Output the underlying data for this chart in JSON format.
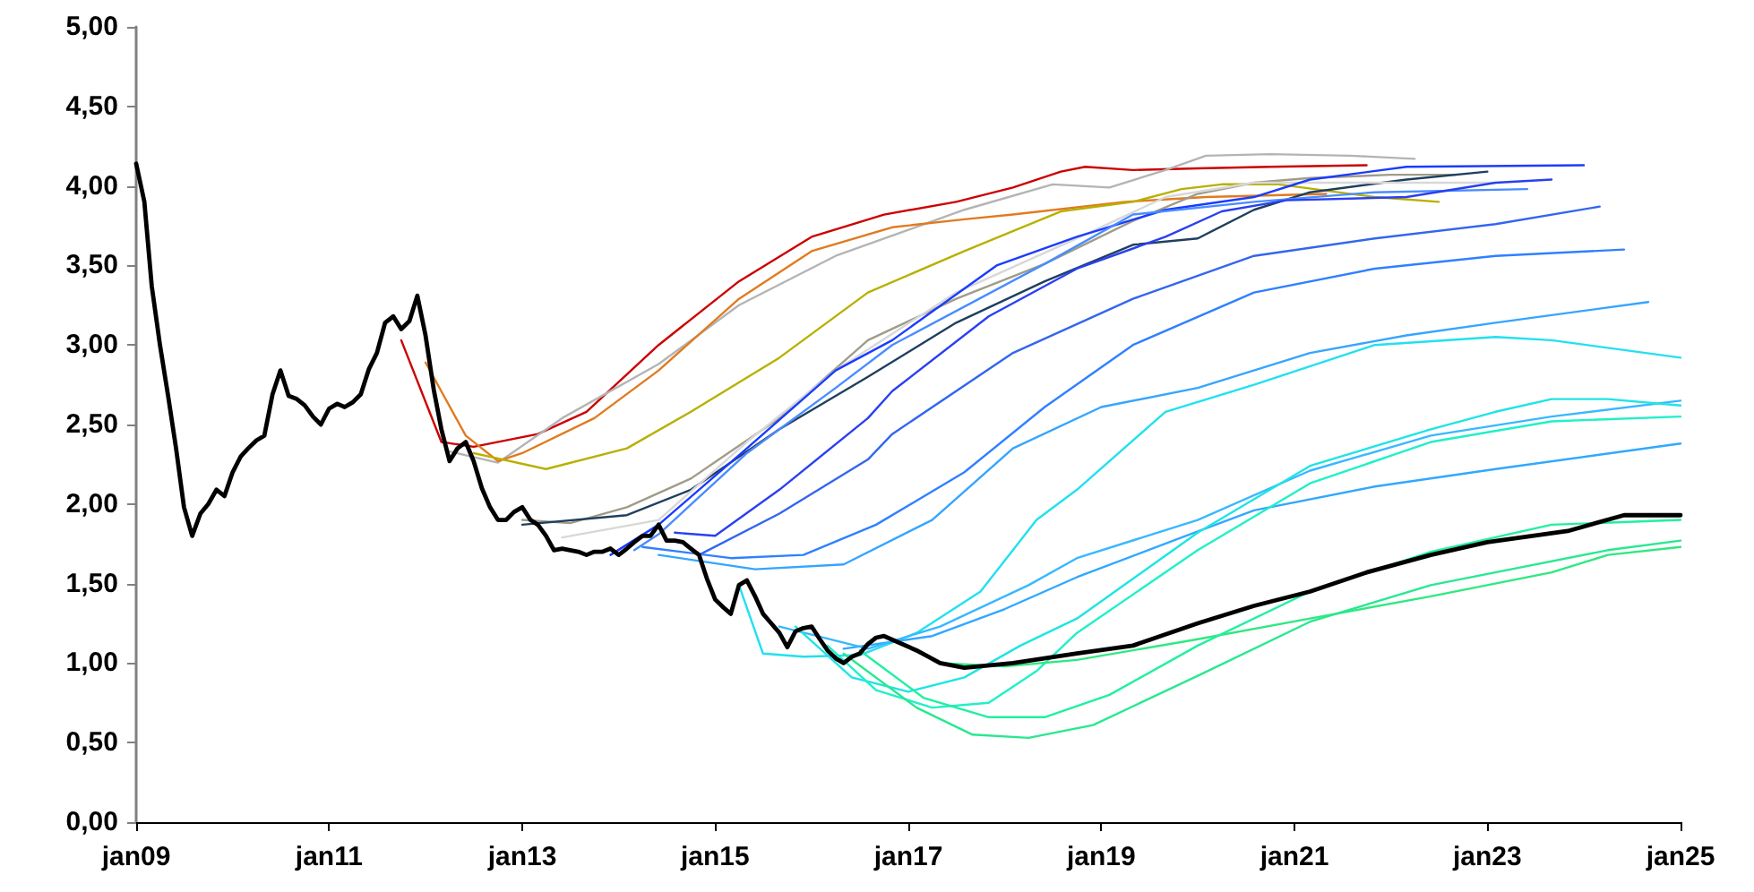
{
  "chart_data": {
    "type": "line",
    "xlim": [
      "2009-01",
      "2025-01"
    ],
    "xticks": [
      {
        "value": "2009-01",
        "label": "jan09"
      },
      {
        "value": "2011-01",
        "label": "jan11"
      },
      {
        "value": "2013-01",
        "label": "jan13"
      },
      {
        "value": "2015-01",
        "label": "jan15"
      },
      {
        "value": "2017-01",
        "label": "jan17"
      },
      {
        "value": "2019-01",
        "label": "jan19"
      },
      {
        "value": "2021-01",
        "label": "jan21"
      },
      {
        "value": "2023-01",
        "label": "jan23"
      },
      {
        "value": "2025-01",
        "label": "jan25"
      }
    ],
    "ylim": [
      0,
      5
    ],
    "yticks": [
      {
        "value": 0,
        "label": "0,00"
      },
      {
        "value": 0.5,
        "label": "0,50"
      },
      {
        "value": 1,
        "label": "1,00"
      },
      {
        "value": 1.5,
        "label": "1,50"
      },
      {
        "value": 2,
        "label": "2,00"
      },
      {
        "value": 2.5,
        "label": "2,50"
      },
      {
        "value": 3,
        "label": "3,00"
      },
      {
        "value": 3.5,
        "label": "3,50"
      },
      {
        "value": 4,
        "label": "4,00"
      },
      {
        "value": 4.5,
        "label": "4,50"
      },
      {
        "value": 5,
        "label": "5,00"
      }
    ],
    "grid": false,
    "marker": "none",
    "line_style": "solid",
    "series": [
      {
        "color": "#cc0000",
        "x": [
          "2011-10",
          "2012-03",
          "2012-07",
          "2013-03",
          "2013-09",
          "2014-06",
          "2015-04",
          "2016-01",
          "2016-10",
          "2017-07",
          "2018-02",
          "2018-08",
          "2018-11",
          "2019-05",
          "2020-01",
          "2020-10",
          "2021-10"
        ],
        "values": [
          3.03,
          2.39,
          2.36,
          2.44,
          2.58,
          3.0,
          3.4,
          3.68,
          3.82,
          3.9,
          3.99,
          4.09,
          4.12,
          4.1,
          4.11,
          4.12,
          4.13
        ]
      },
      {
        "color": "#b4b4b4",
        "x": [
          "2012-04",
          "2012-10",
          "2013-06",
          "2014-06",
          "2015-04",
          "2016-04",
          "2017-08",
          "2018-07",
          "2019-02",
          "2019-09",
          "2020-02",
          "2020-10",
          "2021-08",
          "2022-04"
        ],
        "values": [
          2.33,
          2.26,
          2.54,
          2.88,
          3.25,
          3.56,
          3.85,
          4.01,
          3.99,
          4.1,
          4.19,
          4.2,
          4.19,
          4.17
        ]
      },
      {
        "color": "#e07b20",
        "x": [
          "2012-01",
          "2012-06",
          "2012-10",
          "2013-01",
          "2013-10",
          "2014-06",
          "2015-04",
          "2016-01",
          "2016-11",
          "2017-08",
          "2018-02",
          "2019-04",
          "2020-02",
          "2021-05"
        ],
        "values": [
          2.89,
          2.43,
          2.27,
          2.32,
          2.54,
          2.84,
          3.29,
          3.59,
          3.74,
          3.79,
          3.82,
          3.9,
          3.93,
          3.95
        ]
      },
      {
        "color": "#b8b000",
        "x": [
          "2012-07",
          "2013-04",
          "2014-02",
          "2014-10",
          "2015-09",
          "2016-08",
          "2017-08",
          "2018-08",
          "2019-05",
          "2019-11",
          "2020-04",
          "2020-11",
          "2021-11",
          "2022-07"
        ],
        "values": [
          2.32,
          2.22,
          2.35,
          2.58,
          2.92,
          3.33,
          3.59,
          3.84,
          3.9,
          3.98,
          4.01,
          4.01,
          3.93,
          3.9
        ]
      },
      {
        "color": "#a09c88",
        "x": [
          "2013-01",
          "2013-07",
          "2014-02",
          "2014-10",
          "2015-09",
          "2016-08",
          "2017-07",
          "2018-06",
          "2019-05",
          "2020-01",
          "2020-08",
          "2021-03",
          "2022-01",
          "2022-09"
        ],
        "values": [
          1.9,
          1.88,
          1.98,
          2.16,
          2.54,
          3.03,
          3.29,
          3.51,
          3.78,
          3.95,
          4.02,
          4.05,
          4.07,
          4.07
        ]
      },
      {
        "color": "#1f3f5f",
        "x": [
          "2013-01",
          "2014-02",
          "2014-10",
          "2015-09",
          "2016-08",
          "2017-07",
          "2018-06",
          "2019-05",
          "2020-01",
          "2020-08",
          "2021-03",
          "2022-03",
          "2023-01"
        ],
        "values": [
          1.87,
          1.93,
          2.09,
          2.47,
          2.8,
          3.14,
          3.4,
          3.63,
          3.67,
          3.85,
          3.96,
          4.04,
          4.09
        ]
      },
      {
        "color": "#d8d8d8",
        "x": [
          "2013-06",
          "2014-06",
          "2015-05",
          "2016-04",
          "2017-07",
          "2018-10",
          "2019-09",
          "2020-08",
          "2023-02"
        ],
        "values": [
          1.79,
          1.9,
          2.39,
          2.84,
          3.33,
          3.67,
          3.93,
          4.02,
          4.02
        ]
      },
      {
        "color": "#1a3cff",
        "x": [
          "2013-12",
          "2014-06",
          "2015-05",
          "2016-04",
          "2016-11",
          "2017-12",
          "2018-10",
          "2019-09",
          "2020-08",
          "2021-03",
          "2022-03",
          "2024-01"
        ],
        "values": [
          1.68,
          1.87,
          2.35,
          2.84,
          3.03,
          3.5,
          3.68,
          3.85,
          3.93,
          4.04,
          4.12,
          4.13
        ]
      },
      {
        "color": "#4a8cff",
        "x": [
          "2014-03",
          "2014-06",
          "2015-05",
          "2016-04",
          "2016-11",
          "2018-06",
          "2019-05",
          "2020-08",
          "2021-11",
          "2023-06"
        ],
        "values": [
          1.71,
          1.81,
          2.32,
          2.73,
          3.0,
          3.51,
          3.82,
          3.9,
          3.96,
          3.98
        ]
      },
      {
        "color": "#2a40f0",
        "x": [
          "2014-08",
          "2015-01",
          "2015-09",
          "2016-08",
          "2016-11",
          "2017-11",
          "2018-10",
          "2019-09",
          "2020-04",
          "2020-12",
          "2022-03",
          "2023-02",
          "2023-09"
        ],
        "values": [
          1.82,
          1.8,
          2.09,
          2.54,
          2.71,
          3.18,
          3.48,
          3.68,
          3.84,
          3.91,
          3.93,
          4.02,
          4.04
        ]
      },
      {
        "color": "#3366ee",
        "x": [
          "2014-11",
          "2015-09",
          "2016-08",
          "2016-11",
          "2018-02",
          "2019-05",
          "2020-08",
          "2021-11",
          "2023-02",
          "2024-03"
        ],
        "values": [
          1.68,
          1.94,
          2.28,
          2.44,
          2.95,
          3.29,
          3.56,
          3.67,
          3.76,
          3.87
        ]
      },
      {
        "color": "#2f80ff",
        "x": [
          "2014-04",
          "2015-03",
          "2015-12",
          "2016-09",
          "2017-08",
          "2018-06",
          "2019-05",
          "2020-08",
          "2021-11",
          "2023-02",
          "2024-06"
        ],
        "values": [
          1.73,
          1.66,
          1.68,
          1.87,
          2.2,
          2.61,
          3.0,
          3.33,
          3.48,
          3.56,
          3.6
        ]
      },
      {
        "color": "#35a5ff",
        "x": [
          "2014-06",
          "2015-06",
          "2016-05",
          "2017-04",
          "2018-02",
          "2019-01",
          "2020-01",
          "2021-03",
          "2022-03",
          "2023-02",
          "2024-09"
        ],
        "values": [
          1.68,
          1.59,
          1.62,
          1.9,
          2.35,
          2.61,
          2.73,
          2.95,
          3.06,
          3.14,
          3.27
        ]
      },
      {
        "color": "#22e0f0",
        "x": [
          "2015-04",
          "2015-07",
          "2015-12",
          "2016-07",
          "2017-02",
          "2017-10",
          "2018-05",
          "2018-10",
          "2019-09",
          "2020-08",
          "2021-11",
          "2023-02",
          "2023-09",
          "2025-01"
        ],
        "values": [
          1.49,
          1.06,
          1.04,
          1.05,
          1.19,
          1.45,
          1.9,
          2.09,
          2.58,
          2.75,
          3.0,
          3.05,
          3.03,
          2.92
        ]
      },
      {
        "color": "#30a8ff",
        "x": [
          "2016-05",
          "2017-04",
          "2018-01",
          "2018-10",
          "2019-11",
          "2020-08",
          "2021-11",
          "2023-02",
          "2025-01"
        ],
        "values": [
          1.09,
          1.17,
          1.34,
          1.54,
          1.79,
          1.96,
          2.11,
          2.22,
          2.38
        ]
      },
      {
        "color": "#38b8ff",
        "x": [
          "2015-09",
          "2016-08",
          "2017-05",
          "2018-04",
          "2018-10",
          "2020-01",
          "2021-03",
          "2022-06",
          "2023-09",
          "2025-01"
        ],
        "values": [
          1.23,
          1.09,
          1.23,
          1.49,
          1.66,
          1.9,
          2.21,
          2.43,
          2.55,
          2.65
        ]
      },
      {
        "color": "#20e4e4",
        "x": [
          "2015-11",
          "2016-06",
          "2017-01",
          "2017-08",
          "2018-03",
          "2018-10",
          "2020-01",
          "2021-03",
          "2022-06",
          "2023-02",
          "2023-09",
          "2024-04",
          "2025-01"
        ],
        "values": [
          1.23,
          0.91,
          0.82,
          0.91,
          1.11,
          1.28,
          1.82,
          2.24,
          2.47,
          2.58,
          2.66,
          2.66,
          2.62
        ]
      },
      {
        "color": "#20f0c8",
        "x": [
          "2016-03",
          "2016-09",
          "2017-04",
          "2017-11",
          "2018-05",
          "2018-10",
          "2020-01",
          "2021-03",
          "2022-06",
          "2023-09",
          "2025-01"
        ],
        "values": [
          1.11,
          0.83,
          0.72,
          0.75,
          0.95,
          1.19,
          1.71,
          2.13,
          2.39,
          2.52,
          2.55
        ]
      },
      {
        "color": "#30e880",
        "x": [
          "2016-10",
          "2017-05",
          "2018-01",
          "2018-10",
          "2020-01",
          "2021-03",
          "2022-06",
          "2023-09",
          "2024-04",
          "2025-01"
        ],
        "values": [
          1.17,
          1.0,
          0.98,
          1.02,
          1.15,
          1.28,
          1.42,
          1.57,
          1.68,
          1.73
        ]
      },
      {
        "color": "#20f0a0",
        "x": [
          "2016-07",
          "2017-03",
          "2017-11",
          "2018-06",
          "2019-02",
          "2020-01",
          "2021-03",
          "2022-06",
          "2023-09",
          "2025-01"
        ],
        "values": [
          1.08,
          0.78,
          0.66,
          0.66,
          0.8,
          1.11,
          1.45,
          1.7,
          1.87,
          1.9
        ]
      },
      {
        "color": "#28e890",
        "x": [
          "2016-05",
          "2017-02",
          "2017-09",
          "2018-04",
          "2018-12",
          "2020-01",
          "2021-03",
          "2022-06",
          "2023-05",
          "2024-04",
          "2025-01"
        ],
        "values": [
          1.06,
          0.72,
          0.55,
          0.53,
          0.61,
          0.92,
          1.26,
          1.49,
          1.6,
          1.71,
          1.77
        ]
      },
      {
        "color": "#000000",
        "x": [
          "2009-01",
          "2009-02",
          "2009-03",
          "2009-04",
          "2009-05",
          "2009-06",
          "2009-07",
          "2009-08",
          "2009-09",
          "2009-10",
          "2009-11",
          "2009-12",
          "2010-01",
          "2010-02",
          "2010-03",
          "2010-04",
          "2010-05",
          "2010-06",
          "2010-07",
          "2010-08",
          "2010-09",
          "2010-10",
          "2010-11",
          "2010-12",
          "2011-01",
          "2011-02",
          "2011-03",
          "2011-04",
          "2011-05",
          "2011-06",
          "2011-07",
          "2011-08",
          "2011-09",
          "2011-10",
          "2011-11",
          "2011-12",
          "2012-01",
          "2012-02",
          "2012-03",
          "2012-04",
          "2012-05",
          "2012-06",
          "2012-07",
          "2012-08",
          "2012-09",
          "2012-10",
          "2012-11",
          "2012-12",
          "2013-01",
          "2013-02",
          "2013-03",
          "2013-04",
          "2013-05",
          "2013-06",
          "2013-07",
          "2013-08",
          "2013-09",
          "2013-10",
          "2013-11",
          "2013-12",
          "2014-01",
          "2014-02",
          "2014-03",
          "2014-04",
          "2014-05",
          "2014-06",
          "2014-07",
          "2014-08",
          "2014-09",
          "2014-10",
          "2014-11",
          "2014-12",
          "2015-01",
          "2015-02",
          "2015-03",
          "2015-04",
          "2015-05",
          "2015-06",
          "2015-07",
          "2015-08",
          "2015-09",
          "2015-10",
          "2015-11",
          "2015-12",
          "2016-01",
          "2016-02",
          "2016-03",
          "2016-04",
          "2016-05",
          "2016-06",
          "2016-07",
          "2016-08",
          "2016-09",
          "2016-10",
          "2017-02",
          "2017-05",
          "2017-08",
          "2018-02",
          "2018-10",
          "2019-05",
          "2020-01",
          "2020-08",
          "2021-03",
          "2021-10",
          "2022-06",
          "2023-01",
          "2023-11",
          "2024-06",
          "2025-01"
        ],
        "values": [
          4.14,
          3.9,
          3.37,
          3.0,
          2.69,
          2.35,
          1.98,
          1.8,
          1.94,
          2.0,
          2.09,
          2.05,
          2.2,
          2.3,
          2.35,
          2.4,
          2.43,
          2.69,
          2.84,
          2.68,
          2.66,
          2.62,
          2.55,
          2.5,
          2.6,
          2.63,
          2.61,
          2.64,
          2.69,
          2.85,
          2.95,
          3.14,
          3.18,
          3.1,
          3.15,
          3.31,
          3.06,
          2.72,
          2.47,
          2.27,
          2.35,
          2.39,
          2.27,
          2.1,
          1.98,
          1.9,
          1.9,
          1.95,
          1.98,
          1.9,
          1.87,
          1.8,
          1.71,
          1.72,
          1.71,
          1.7,
          1.68,
          1.7,
          1.7,
          1.72,
          1.68,
          1.72,
          1.76,
          1.8,
          1.8,
          1.87,
          1.77,
          1.77,
          1.76,
          1.72,
          1.68,
          1.53,
          1.4,
          1.35,
          1.31,
          1.49,
          1.52,
          1.42,
          1.31,
          1.25,
          1.19,
          1.1,
          1.2,
          1.22,
          1.23,
          1.15,
          1.08,
          1.03,
          1.0,
          1.04,
          1.06,
          1.12,
          1.16,
          1.17,
          1.08,
          1.0,
          0.97,
          1.0,
          1.06,
          1.11,
          1.25,
          1.36,
          1.45,
          1.57,
          1.68,
          1.76,
          1.83,
          1.93,
          1.93
        ]
      }
    ]
  }
}
